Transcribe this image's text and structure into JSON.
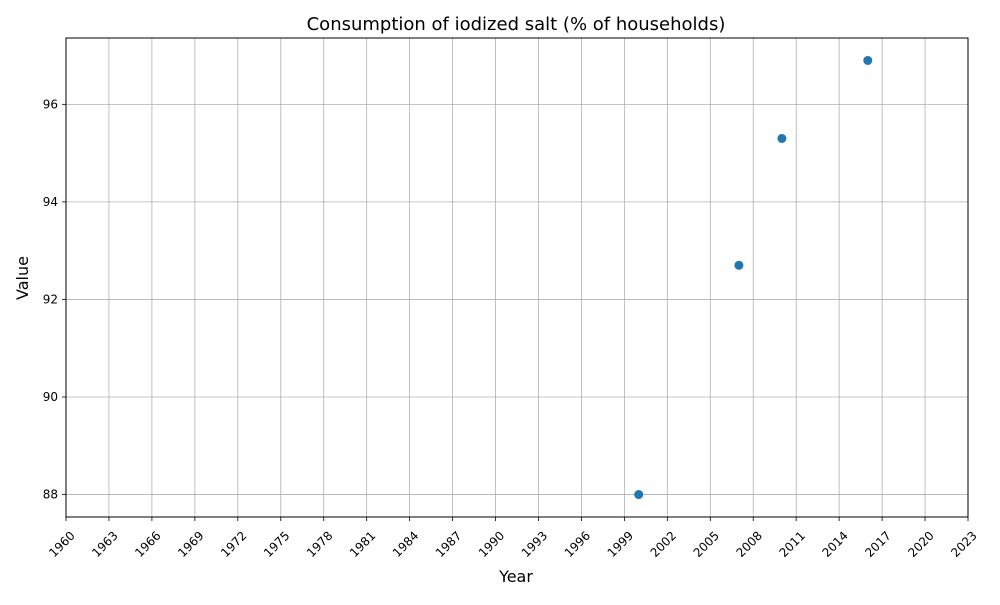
{
  "chart_data": {
    "type": "scatter",
    "title": "Consumption of iodized salt (% of households)",
    "xlabel": "Year",
    "ylabel": "Value",
    "xlim": [
      1960,
      2023
    ],
    "ylim": [
      87.54,
      97.36
    ],
    "xticks": [
      1960,
      1963,
      1966,
      1969,
      1972,
      1975,
      1978,
      1981,
      1984,
      1987,
      1990,
      1993,
      1996,
      1999,
      2002,
      2005,
      2008,
      2011,
      2014,
      2017,
      2020,
      2023
    ],
    "yticks": [
      88,
      90,
      92,
      94,
      96
    ],
    "grid": true,
    "series": [
      {
        "color": "#1f77b4",
        "points": [
          {
            "x": 2000,
            "y": 88.0
          },
          {
            "x": 2007,
            "y": 92.7
          },
          {
            "x": 2010,
            "y": 95.3
          },
          {
            "x": 2016,
            "y": 96.9
          }
        ]
      }
    ]
  }
}
